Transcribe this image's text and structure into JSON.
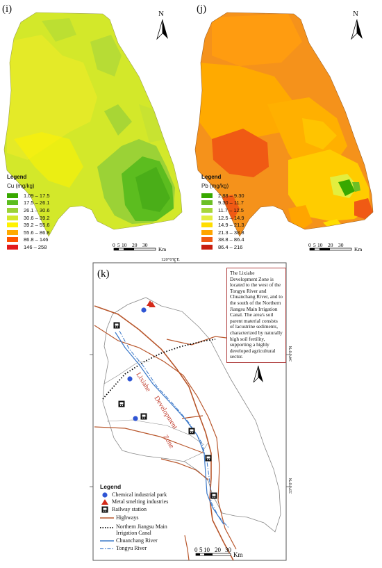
{
  "panels": {
    "i": {
      "label": "(i)",
      "north": "N",
      "legend_title": "Legend",
      "unit": "Cu (mg/kg)",
      "classes": [
        {
          "range": "1.09 – 17.5",
          "color": "#38a800"
        },
        {
          "range": "17.5 – 26.1",
          "color": "#5cbd1f"
        },
        {
          "range": "26.1 – 30.6",
          "color": "#9bd236"
        },
        {
          "range": "30.6 – 39.2",
          "color": "#d3e82a"
        },
        {
          "range": "39.2 – 55.6",
          "color": "#fff200"
        },
        {
          "range": "55.6 – 86.8",
          "color": "#ffaa00"
        },
        {
          "range": "86.8 – 146",
          "color": "#ff5500"
        },
        {
          "range": "146 – 258",
          "color": "#e31a1c"
        }
      ],
      "scale_labels": [
        "0",
        "5",
        "10",
        "20",
        "30"
      ],
      "scale_unit": "Km"
    },
    "j": {
      "label": "(j)",
      "north": "N",
      "legend_title": "Legend",
      "unit": "Pb (mg/kg)",
      "classes": [
        {
          "range": "2.88 – 9.30",
          "color": "#38a800"
        },
        {
          "range": "9.30 – 11.7",
          "color": "#6cbf26"
        },
        {
          "range": "11.7 – 12.5",
          "color": "#a6d63a"
        },
        {
          "range": "12.5 – 14.9",
          "color": "#e3ee3f"
        },
        {
          "range": "14.9 – 21.3",
          "color": "#ffdd00"
        },
        {
          "range": "21.3 – 38.8",
          "color": "#ffa500"
        },
        {
          "range": "38.8 – 86.4",
          "color": "#f05a14"
        },
        {
          "range": "86.4 – 216",
          "color": "#c81e0f"
        }
      ],
      "scale_labels": [
        "0",
        "5",
        "10",
        "20",
        "30"
      ],
      "scale_unit": "Km"
    },
    "k": {
      "label": "(k)",
      "north": "N",
      "lon_tick": "120°0'0\"E",
      "lat_tick_1": "34°0'0\"N",
      "lat_tick_2": "33°0'0\"N",
      "zone_label_1": "Lixiahe",
      "zone_label_2": "Development",
      "zone_label_3": "Zone",
      "note": "The Lixiahe Development Zone is located to the west of the Tongyu River and Chuanchang River, and to the south of the Northern Jiangsu Main Irrigation Canal. The area's soil parent material consists of lacustrine sediments, characterized by naturally high soil fertility, supporting a highly developed agricultural sector.",
      "legend_title": "Legend",
      "legend_items": [
        {
          "label": "Chemical industrial park",
          "symbol": "blue-dot"
        },
        {
          "label": "Metal smelting industries",
          "symbol": "red-triangle"
        },
        {
          "label": "Railway station",
          "symbol": "railway"
        },
        {
          "label": "Highways",
          "symbol": "highway"
        },
        {
          "label": "Northern Jiangsu Main Irrigation Canal",
          "symbol": "canal"
        },
        {
          "label": "Chuanchang River",
          "symbol": "river"
        },
        {
          "label": "Tongyu River",
          "symbol": "river-dashed"
        }
      ],
      "scale_labels": [
        "0",
        "5",
        "10",
        "20",
        "30"
      ],
      "scale_unit": "Km",
      "colors": {
        "highway": "#b8562b",
        "river": "#3a78c9",
        "park": "#2f55d4",
        "smelting": "#d42a1a",
        "frame": "#b04040"
      }
    }
  }
}
